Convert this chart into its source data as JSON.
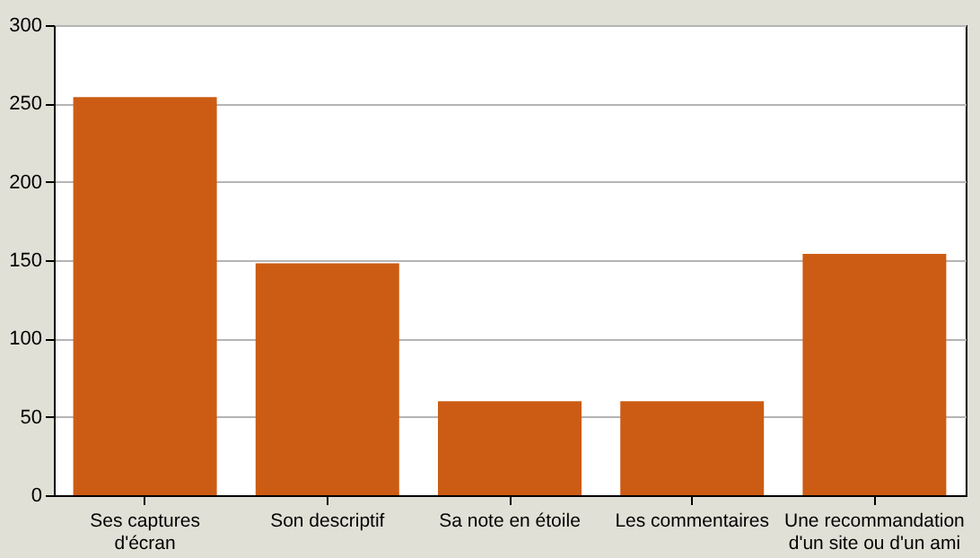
{
  "chart_data": {
    "type": "bar",
    "categories": [
      "Ses captures d'écran",
      "Son descriptif",
      "Sa note en étoile",
      "Les commentaires",
      "Une recommandation d'un site ou d'un ami"
    ],
    "values": [
      254,
      148,
      60,
      60,
      154
    ],
    "color": "#cc5c14",
    "ylim": [
      0,
      300
    ],
    "yticks": [
      0,
      50,
      100,
      150,
      200,
      250,
      300
    ],
    "grid": "y"
  }
}
